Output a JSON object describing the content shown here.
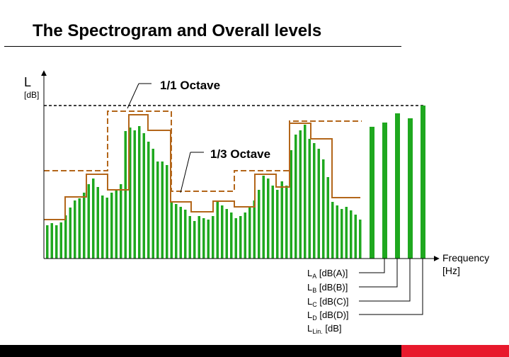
{
  "slide": {
    "title": "The Spectrogram and Overall levels"
  },
  "colors": {
    "bars": "#1fa81f",
    "octave_lines": "#b3661a",
    "footer_dark": "#000000",
    "footer_accent": "#e8192c"
  },
  "axis": {
    "y_label": "L",
    "y_unit": "[dB]",
    "x_label": "Frequency",
    "x_unit": "[Hz]"
  },
  "annotations": {
    "octave": "1/1 Octave",
    "third_octave": "1/3 Octave"
  },
  "overall_levels": [
    {
      "main": "L",
      "sub": "A",
      "unit": " [dB(A)]"
    },
    {
      "main": "L",
      "sub": "B",
      "unit": " [dB(B)]"
    },
    {
      "main": "L",
      "sub": "C",
      "unit": " [dB(C)]"
    },
    {
      "main": "L",
      "sub": "D",
      "unit": " [dB(D)]"
    },
    {
      "main": "L",
      "sub": "Lin.",
      "unit": " [dB]"
    }
  ]
}
